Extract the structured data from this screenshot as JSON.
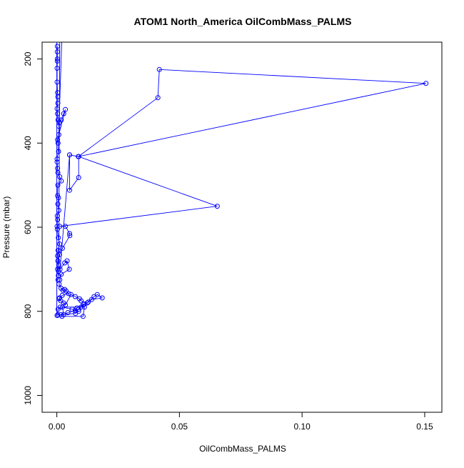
{
  "chart_data": {
    "type": "line",
    "title": "ATOM1 North_America OilCombMass_PALMS",
    "xlabel": "OilCombMass_PALMS",
    "ylabel": "Pressure (mbar)",
    "xlim": [
      -0.006,
      0.157
    ],
    "ylim": [
      1040,
      160
    ],
    "y_reversed": true,
    "x_ticks": [
      0.0,
      0.05,
      0.1,
      0.15
    ],
    "x_tick_labels": [
      "0.00",
      "0.05",
      "0.10",
      "0.15"
    ],
    "y_ticks": [
      200,
      400,
      600,
      800,
      1000
    ],
    "y_tick_labels": [
      "200",
      "400",
      "600",
      "800",
      "1000"
    ],
    "grid": false,
    "legend": "none",
    "series_color": "#0000ff",
    "series": [
      {
        "x": [
          0.0002,
          0.0002,
          0.0002,
          0.0002,
          0.0001,
          0.0001,
          0.0003,
          0.0004,
          0.0004,
          0.0001,
          0.0003,
          0.0005,
          0.0008,
          0.001,
          0.0018,
          0.0028,
          0.0035,
          0.0008,
          0.0003,
          0.0005,
          0.0007,
          0.0001,
          0.0001,
          0.0003,
          0.0004,
          0.0012,
          0.0018,
          0.0004,
          0.0003,
          0.0007,
          0.0004,
          0.0008,
          0.0002,
          0.0003,
          0.0001,
          0.0002,
          0.0006,
          0.0011,
          0.0005,
          0.0003,
          0.0008,
          0.0013,
          0.0052,
          0.0088,
          0.0412,
          0.0418,
          0.1505,
          0.0088,
          0.0052,
          0.0052,
          0.0089,
          0.0089,
          0.0654,
          0.0012,
          0.0035,
          0.0052,
          0.0053,
          0.0023,
          0.0011,
          0.0004,
          0.0003,
          0.0006,
          0.0005,
          0.0007,
          0.0032,
          0.0042,
          0.0051,
          0.0018,
          0.0012,
          0.0009,
          0.0017,
          0.0025,
          0.0032,
          0.0038,
          0.0048,
          0.0022,
          0.0011,
          0.0009,
          0.0016,
          0.0028,
          0.0035,
          0.0058,
          0.0075,
          0.0092,
          0.0099,
          0.0124,
          0.0152,
          0.0165,
          0.0185,
          0.0142,
          0.0128,
          0.0108,
          0.0099,
          0.0089,
          0.0112,
          0.0082,
          0.0075,
          0.0045,
          0.0028,
          0.0023,
          0.0062,
          0.0089,
          0.0076,
          0.0016,
          0.0021,
          0.0107,
          0.0113,
          0.0014,
          0.0005,
          0.0004,
          0.0001
        ],
        "y": [
          170,
          183,
          200,
          205,
          222,
          255,
          280,
          290,
          305,
          318,
          330,
          345,
          360,
          350,
          345,
          330,
          320,
          380,
          392,
          400,
          420,
          438,
          445,
          460,
          470,
          480,
          490,
          500,
          525,
          530,
          545,
          560,
          573,
          582,
          598,
          605,
          625,
          640,
          655,
          668,
          690,
          700,
          428,
          432,
          292,
          225,
          258,
          432,
          428,
          512,
          482,
          432,
          550,
          598,
          598,
          615,
          620,
          650,
          665,
          680,
          700,
          715,
          725,
          705,
          685,
          680,
          700,
          712,
          725,
          735,
          745,
          750,
          748,
          752,
          758,
          762,
          768,
          770,
          775,
          780,
          785,
          760,
          765,
          770,
          775,
          780,
          765,
          760,
          768,
          772,
          778,
          783,
          790,
          795,
          783,
          792,
          798,
          803,
          808,
          790,
          795,
          800,
          805,
          808,
          812,
          812,
          790,
          790,
          795,
          808,
          810
        ]
      }
    ]
  }
}
